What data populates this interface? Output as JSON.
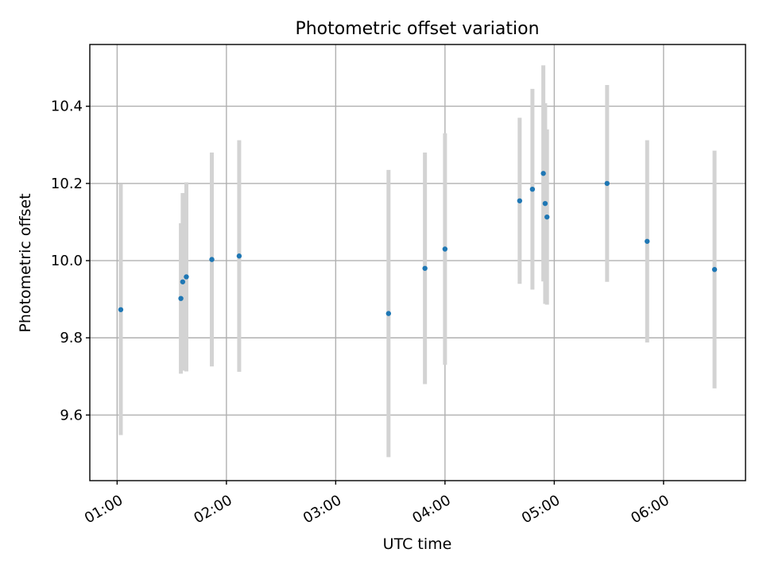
{
  "chart_data": {
    "type": "scatter",
    "title": "Photometric offset variation",
    "xlabel": "UTC time",
    "ylabel": "Photometric offset",
    "x_unit": "hours UTC",
    "xlim": [
      "00:45",
      "06:45"
    ],
    "ylim": [
      9.43,
      10.56
    ],
    "x_ticks": [
      {
        "value": "01:00",
        "label": "01:00"
      },
      {
        "value": "02:00",
        "label": "02:00"
      },
      {
        "value": "03:00",
        "label": "03:00"
      },
      {
        "value": "04:00",
        "label": "04:00"
      },
      {
        "value": "05:00",
        "label": "05:00"
      },
      {
        "value": "06:00",
        "label": "06:00"
      }
    ],
    "y_ticks": [
      {
        "value": 9.6,
        "label": "9.6"
      },
      {
        "value": 9.8,
        "label": "9.8"
      },
      {
        "value": 10.0,
        "label": "10.0"
      },
      {
        "value": 10.2,
        "label": "10.2"
      },
      {
        "value": 10.4,
        "label": "10.4"
      }
    ],
    "grid": true,
    "point_color": "#1f77b4",
    "errorbar_color": "#d3d3d3",
    "points": [
      {
        "x": "01:02",
        "y": 9.873,
        "err": 0.325
      },
      {
        "x": "01:35",
        "y": 9.902,
        "err": 0.195
      },
      {
        "x": "01:36",
        "y": 9.945,
        "err": 0.23
      },
      {
        "x": "01:38",
        "y": 9.958,
        "err": 0.245
      },
      {
        "x": "01:52",
        "y": 10.003,
        "err": 0.277
      },
      {
        "x": "02:07",
        "y": 10.012,
        "err": 0.3
      },
      {
        "x": "03:29",
        "y": 9.863,
        "err": 0.372
      },
      {
        "x": "03:49",
        "y": 9.98,
        "err": 0.3
      },
      {
        "x": "04:00",
        "y": 10.03,
        "err": 0.3
      },
      {
        "x": "04:41",
        "y": 10.155,
        "err": 0.215
      },
      {
        "x": "04:48",
        "y": 10.185,
        "err": 0.26
      },
      {
        "x": "04:54",
        "y": 10.226,
        "err": 0.28
      },
      {
        "x": "04:55",
        "y": 10.148,
        "err": 0.26
      },
      {
        "x": "04:56",
        "y": 10.113,
        "err": 0.227
      },
      {
        "x": "05:29",
        "y": 10.2,
        "err": 0.255
      },
      {
        "x": "05:51",
        "y": 10.05,
        "err": 0.262
      },
      {
        "x": "06:28",
        "y": 9.977,
        "err": 0.308
      }
    ]
  }
}
